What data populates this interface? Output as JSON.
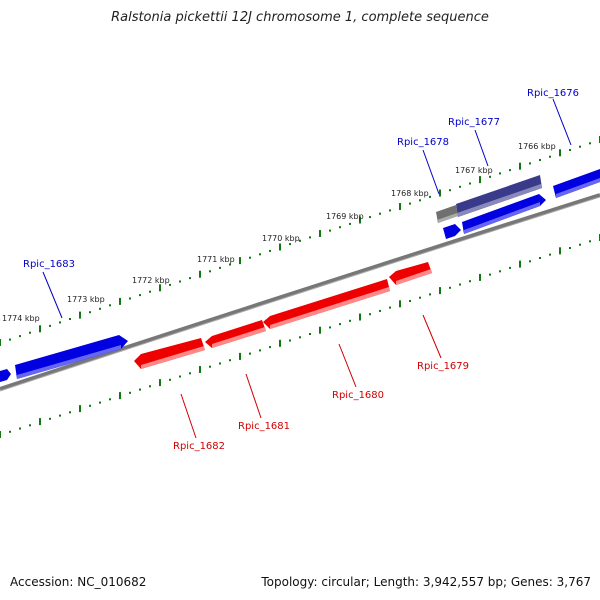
{
  "title": "Ralstonia pickettii 12J chromosome 1, complete sequence",
  "footer": {
    "accession": "Accession: NC_010682",
    "summary": "Topology: circular; Length: 3,942,557 bp; Genes: 3,767"
  },
  "colors": {
    "forward_gene": "#0000e0",
    "reverse_gene": "#ee0000",
    "highlight_gene": "#3a3a8a",
    "pseudo_gene": "#707070",
    "backbone": "#777777",
    "tick": "#117711",
    "label_forward": "#0000c8",
    "label_reverse": "#d00000"
  },
  "scale_labels": [
    "1774 kbp",
    "1773 kbp",
    "1772 kbp",
    "1771 kbp",
    "1770 kbp",
    "1769 kbp",
    "1768 kbp",
    "1767 kbp",
    "1766 kbp"
  ],
  "genes_forward": [
    {
      "id": "Rpic_1683",
      "shape": "arrow",
      "color": "#0000e0"
    },
    {
      "id": "",
      "shape": "arrow",
      "color": "#0000e0"
    },
    {
      "id": "",
      "shape": "arrow",
      "color": "#0000e0"
    },
    {
      "id": "",
      "shape": "arrow",
      "color": "#0000e0"
    },
    {
      "id": "Rpic_1676",
      "shape": "arrow",
      "color": "#0000e0"
    },
    {
      "id": "Rpic_1678",
      "shape": "box",
      "color": "#707070"
    },
    {
      "id": "Rpic_1677",
      "shape": "arrow",
      "color": "#3a3a8a"
    }
  ],
  "genes_reverse": [
    {
      "id": "Rpic_1682",
      "shape": "arrow",
      "color": "#ee0000"
    },
    {
      "id": "Rpic_1681",
      "shape": "arrow",
      "color": "#ee0000"
    },
    {
      "id": "Rpic_1680",
      "shape": "arrow",
      "color": "#ee0000"
    },
    {
      "id": "Rpic_1679",
      "shape": "arrow",
      "color": "#ee0000"
    }
  ],
  "labels": {
    "rpic_1683": "Rpic_1683",
    "rpic_1678": "Rpic_1678",
    "rpic_1677": "Rpic_1677",
    "rpic_1676": "Rpic_1676",
    "rpic_1682": "Rpic_1682",
    "rpic_1681": "Rpic_1681",
    "rpic_1680": "Rpic_1680",
    "rpic_1679": "Rpic_1679"
  }
}
